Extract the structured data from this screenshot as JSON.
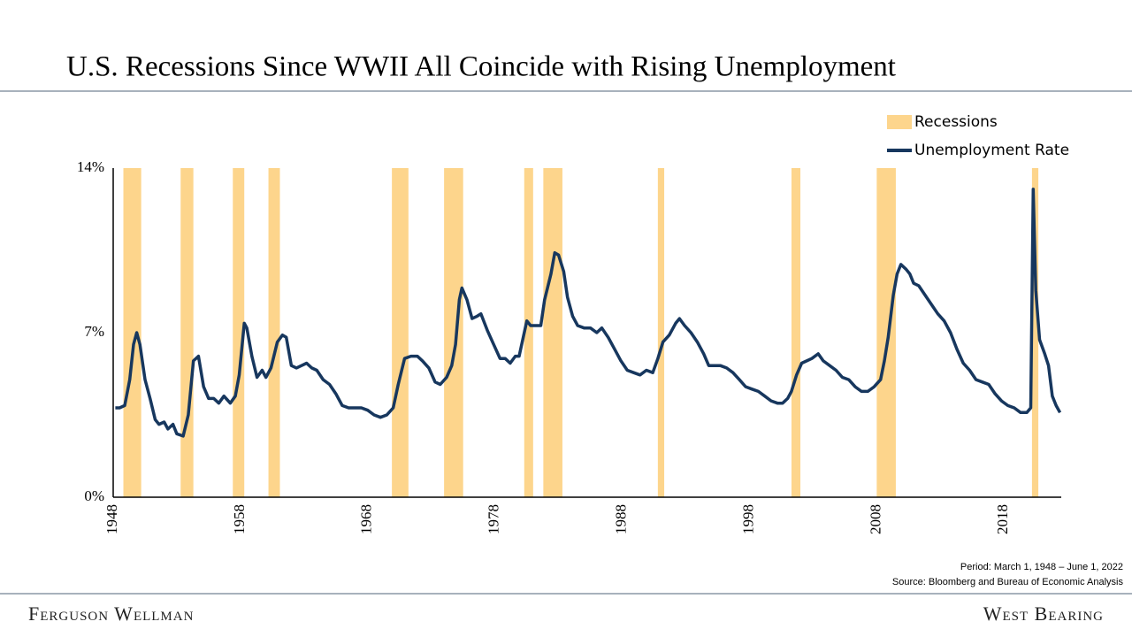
{
  "chart_data": {
    "type": "line",
    "title": "U.S. Recessions Since WWII All Coincide with Rising Unemployment",
    "xlim": [
      1948,
      2022.5
    ],
    "xticks": [
      1948,
      1958,
      1968,
      1978,
      1988,
      1998,
      2008,
      2018
    ],
    "ylim": [
      0,
      14
    ],
    "yticks": [
      {
        "value": 0,
        "label": "0%"
      },
      {
        "value": 7,
        "label": "7%"
      },
      {
        "value": 14,
        "label": "14%"
      }
    ],
    "grid": false,
    "legend": "top-right",
    "series": [
      {
        "name": "Recessions",
        "color": "#fdd58c",
        "ranges": [
          [
            1948.8,
            1950.2
          ],
          [
            1953.3,
            1954.3
          ],
          [
            1957.4,
            1958.3
          ],
          [
            1960.2,
            1961.1
          ],
          [
            1969.9,
            1971.2
          ],
          [
            1974.0,
            1975.5
          ],
          [
            1980.3,
            1981.0
          ],
          [
            1981.8,
            1983.3
          ],
          [
            1990.8,
            1991.3
          ],
          [
            2001.3,
            2002.0
          ],
          [
            2008.0,
            2009.5
          ],
          [
            2020.2,
            2020.7
          ]
        ]
      },
      {
        "name": "Unemployment Rate",
        "color": "#17375e",
        "x": [
          1948.17,
          1948.5,
          1948.9,
          1949.3,
          1949.6,
          1949.85,
          1950.1,
          1950.5,
          1950.9,
          1951.3,
          1951.6,
          1952.0,
          1952.3,
          1952.7,
          1953.0,
          1953.5,
          1953.9,
          1954.3,
          1954.7,
          1955.1,
          1955.5,
          1955.9,
          1956.3,
          1956.7,
          1957.2,
          1957.6,
          1957.9,
          1958.3,
          1958.5,
          1958.9,
          1959.3,
          1959.7,
          1960.0,
          1960.4,
          1960.9,
          1961.3,
          1961.6,
          1962.0,
          1962.4,
          1962.8,
          1963.2,
          1963.6,
          1964.0,
          1964.5,
          1965.0,
          1965.5,
          1966.0,
          1966.5,
          1967.0,
          1967.5,
          1968.0,
          1968.5,
          1969.0,
          1969.5,
          1970.0,
          1970.4,
          1970.9,
          1971.4,
          1971.9,
          1972.3,
          1972.8,
          1973.3,
          1973.7,
          1974.2,
          1974.6,
          1974.9,
          1975.2,
          1975.4,
          1975.8,
          1976.2,
          1976.6,
          1976.9,
          1977.4,
          1977.9,
          1978.4,
          1978.8,
          1979.2,
          1979.6,
          1979.9,
          1980.3,
          1980.5,
          1980.8,
          1981.3,
          1981.6,
          1981.9,
          1982.4,
          1982.7,
          1983.0,
          1983.4,
          1983.7,
          1984.1,
          1984.5,
          1985.0,
          1985.5,
          1986.0,
          1986.4,
          1986.9,
          1987.4,
          1987.9,
          1988.4,
          1988.9,
          1989.4,
          1989.9,
          1990.4,
          1990.8,
          1991.2,
          1991.7,
          1992.2,
          1992.5,
          1992.9,
          1993.4,
          1993.9,
          1994.4,
          1994.8,
          1995.2,
          1995.7,
          1996.2,
          1996.7,
          1997.2,
          1997.7,
          1998.2,
          1998.7,
          1999.2,
          1999.7,
          2000.2,
          2000.6,
          2001.0,
          2001.3,
          2001.7,
          2002.1,
          2002.5,
          2002.9,
          2003.4,
          2003.8,
          2004.3,
          2004.8,
          2005.3,
          2005.8,
          2006.3,
          2006.8,
          2007.3,
          2007.8,
          2008.3,
          2008.6,
          2008.9,
          2009.3,
          2009.6,
          2009.9,
          2010.3,
          2010.6,
          2010.9,
          2011.3,
          2011.8,
          2012.3,
          2012.8,
          2013.3,
          2013.8,
          2014.3,
          2014.8,
          2015.3,
          2015.8,
          2016.3,
          2016.8,
          2017.3,
          2017.8,
          2018.3,
          2018.8,
          2019.3,
          2019.8,
          2020.1,
          2020.3,
          2020.5,
          2020.8,
          2021.2,
          2021.5,
          2021.8,
          2022.1,
          2022.4
        ],
        "values": [
          3.8,
          3.8,
          3.9,
          5.0,
          6.5,
          7.0,
          6.5,
          5.0,
          4.2,
          3.3,
          3.1,
          3.2,
          2.9,
          3.1,
          2.7,
          2.6,
          3.5,
          5.8,
          6.0,
          4.7,
          4.2,
          4.2,
          4.0,
          4.3,
          4.0,
          4.3,
          5.2,
          7.4,
          7.2,
          6.0,
          5.1,
          5.4,
          5.1,
          5.5,
          6.6,
          6.9,
          6.8,
          5.6,
          5.5,
          5.6,
          5.7,
          5.5,
          5.4,
          5.0,
          4.8,
          4.4,
          3.9,
          3.8,
          3.8,
          3.8,
          3.7,
          3.5,
          3.4,
          3.5,
          3.8,
          4.8,
          5.9,
          6.0,
          6.0,
          5.8,
          5.5,
          4.9,
          4.8,
          5.1,
          5.6,
          6.5,
          8.4,
          8.9,
          8.4,
          7.6,
          7.7,
          7.8,
          7.1,
          6.5,
          5.9,
          5.9,
          5.7,
          6.0,
          6.0,
          7.0,
          7.5,
          7.3,
          7.3,
          7.3,
          8.4,
          9.5,
          10.4,
          10.3,
          9.6,
          8.5,
          7.7,
          7.3,
          7.2,
          7.2,
          7.0,
          7.2,
          6.8,
          6.3,
          5.8,
          5.4,
          5.3,
          5.2,
          5.4,
          5.3,
          5.9,
          6.6,
          6.9,
          7.4,
          7.6,
          7.3,
          7.0,
          6.6,
          6.1,
          5.6,
          5.6,
          5.6,
          5.5,
          5.3,
          5.0,
          4.7,
          4.6,
          4.5,
          4.3,
          4.1,
          4.0,
          4.0,
          4.2,
          4.5,
          5.2,
          5.7,
          5.8,
          5.9,
          6.1,
          5.8,
          5.6,
          5.4,
          5.1,
          5.0,
          4.7,
          4.5,
          4.5,
          4.7,
          5.0,
          5.8,
          6.8,
          8.6,
          9.5,
          9.9,
          9.7,
          9.5,
          9.1,
          9.0,
          8.6,
          8.2,
          7.8,
          7.5,
          7.0,
          6.3,
          5.7,
          5.4,
          5.0,
          4.9,
          4.8,
          4.4,
          4.1,
          3.9,
          3.8,
          3.6,
          3.6,
          3.8,
          13.1,
          8.8,
          6.7,
          6.1,
          5.6,
          4.3,
          3.9,
          3.6
        ]
      }
    ],
    "period": "Period: March 1, 1948 – June 1, 2022",
    "source": "Source: Bloomberg and Bureau of Economic Analysis",
    "footer_left": "Ferguson Wellman",
    "footer_right": "West Bearing"
  }
}
